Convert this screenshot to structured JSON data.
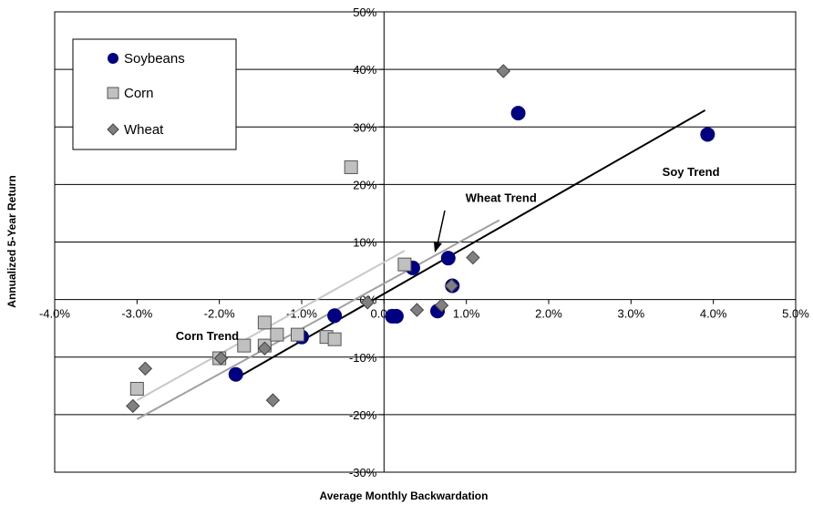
{
  "chart_data": {
    "type": "scatter",
    "xlabel": "Average Monthly  Backwardation",
    "ylabel": "Annualized 5-Year Return",
    "xlim": [
      -4.0,
      5.0
    ],
    "ylim": [
      -30,
      50
    ],
    "x_unit": "%",
    "y_unit": "%",
    "x_ticks": [
      "-4.0%",
      "-3.0%",
      "-2.0%",
      "-1.0%",
      "0.0%",
      "1.0%",
      "2.0%",
      "3.0%",
      "4.0%",
      "5.0%"
    ],
    "y_ticks": [
      "50%",
      "40%",
      "30%",
      "20%",
      "10%",
      "0%",
      "-10%",
      "-20%",
      "-30%"
    ],
    "grid": "horizontal",
    "legend_position": "top-left",
    "series": [
      {
        "name": "Soybeans",
        "marker": "circle",
        "color": "#000080",
        "points": [
          {
            "x": -1.8,
            "y": -13.0
          },
          {
            "x": -1.0,
            "y": -6.5
          },
          {
            "x": -0.6,
            "y": -2.8
          },
          {
            "x": 0.1,
            "y": -2.9
          },
          {
            "x": 0.15,
            "y": -2.9
          },
          {
            "x": 0.35,
            "y": 5.5
          },
          {
            "x": 0.65,
            "y": -2.0
          },
          {
            "x": 0.78,
            "y": 7.2
          },
          {
            "x": 0.83,
            "y": 2.4
          },
          {
            "x": 1.63,
            "y": 32.4
          },
          {
            "x": 3.93,
            "y": 28.7
          }
        ]
      },
      {
        "name": "Corn",
        "marker": "square",
        "color": "#c0c0c0",
        "points": [
          {
            "x": -3.0,
            "y": -15.5
          },
          {
            "x": -2.0,
            "y": -10.2
          },
          {
            "x": -1.7,
            "y": -8.0
          },
          {
            "x": -1.45,
            "y": -4.0
          },
          {
            "x": -1.45,
            "y": -8.0
          },
          {
            "x": -1.3,
            "y": -6.1
          },
          {
            "x": -1.05,
            "y": -6.1
          },
          {
            "x": -0.7,
            "y": -6.5
          },
          {
            "x": -0.6,
            "y": -6.9
          },
          {
            "x": -0.4,
            "y": 23.0
          },
          {
            "x": 0.25,
            "y": 6.1
          }
        ]
      },
      {
        "name": "Wheat",
        "marker": "diamond",
        "color": "#808080",
        "points": [
          {
            "x": -3.05,
            "y": -18.5
          },
          {
            "x": -2.9,
            "y": -12.0
          },
          {
            "x": -1.98,
            "y": -10.2
          },
          {
            "x": -1.45,
            "y": -8.5
          },
          {
            "x": -1.35,
            "y": -17.5
          },
          {
            "x": -0.2,
            "y": -0.5
          },
          {
            "x": 0.4,
            "y": -1.8
          },
          {
            "x": 0.7,
            "y": -1.0
          },
          {
            "x": 0.82,
            "y": 2.4
          },
          {
            "x": 1.08,
            "y": 7.3
          },
          {
            "x": 1.45,
            "y": 39.7
          }
        ]
      }
    ],
    "trendlines": [
      {
        "name": "Soy Trend",
        "x": [
          -1.75,
          3.9
        ],
        "y": [
          -13.3,
          32.9
        ],
        "color": "#000000"
      },
      {
        "name": "Wheat Trend",
        "x": [
          -3.0,
          1.4
        ],
        "y": [
          -20.8,
          13.8
        ],
        "color": "#a0a0a0"
      },
      {
        "name": "Corn Trend",
        "x": [
          -3.0,
          0.25
        ],
        "y": [
          -17.5,
          8.5
        ],
        "color": "#c8c8c8"
      }
    ],
    "annotations": [
      {
        "text": "Soy Trend",
        "x": 3.38,
        "y": 21.5
      },
      {
        "text": "Wheat Trend",
        "x": 0.99,
        "y": 17.0
      },
      {
        "text": "Corn Trend",
        "x": -2.53,
        "y": -7.0
      }
    ]
  }
}
